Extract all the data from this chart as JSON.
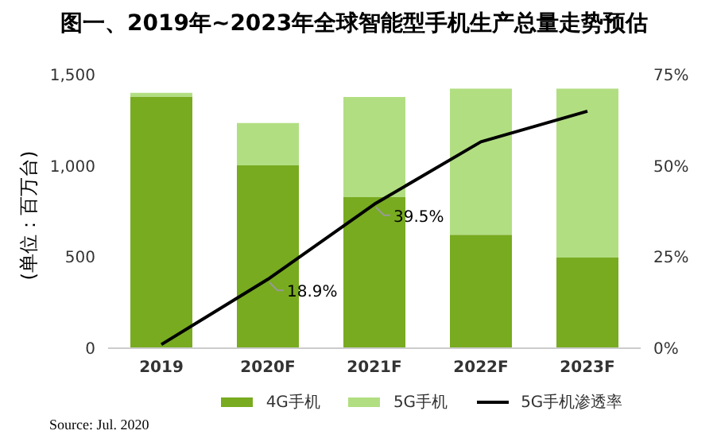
{
  "chart_data": {
    "type": "bar",
    "title": "图一、2019年~2023年全球智能型手机生产总量走势预估",
    "ylabel": "(单位：百万台)",
    "categories": [
      "2019",
      "2020F",
      "2021F",
      "2022F",
      "2023F"
    ],
    "stacked": true,
    "series": [
      {
        "name": "4G手机",
        "color": "#78ab20",
        "values": [
          1380,
          1003,
          828,
          622,
          497
        ]
      },
      {
        "name": "5G手机",
        "color": "#b2de82",
        "values": [
          21,
          232,
          550,
          802,
          927
        ]
      },
      {
        "name": "5G手机渗透率",
        "type": "line",
        "axis": "y2",
        "color": "#000000",
        "values": [
          1.0,
          18.9,
          39.5,
          56.6,
          65.0
        ],
        "value_labels": [
          null,
          "18.9%",
          "39.5%",
          null,
          null
        ]
      }
    ],
    "ylim": [
      0,
      1500
    ],
    "yticks": [
      0,
      500,
      {
        "value": 1000,
        "label": "1,000"
      },
      {
        "value": 1500,
        "label": "1,500"
      }
    ],
    "y2lim": [
      0,
      75
    ],
    "y2ticks": [
      {
        "value": 0,
        "label": "0%"
      },
      {
        "value": 25,
        "label": "25%"
      },
      {
        "value": 50,
        "label": "50%"
      },
      {
        "value": 75,
        "label": "75%"
      }
    ],
    "legend": "bottom",
    "grid": false,
    "marker": "none",
    "annotations": [
      "Source: Jul. 2020"
    ]
  }
}
